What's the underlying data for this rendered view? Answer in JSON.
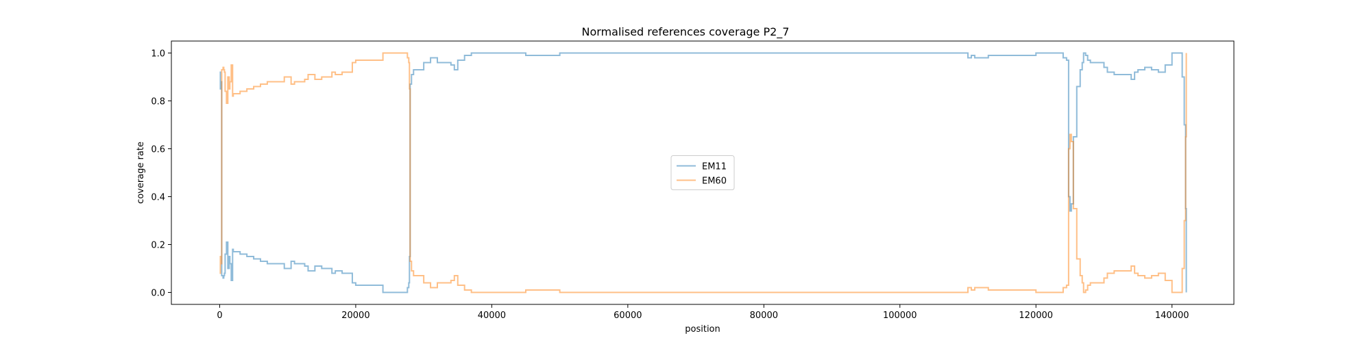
{
  "chart_data": {
    "type": "line",
    "title": "Normalised references coverage P2_7",
    "xlabel": "position",
    "ylabel": "coverage rate",
    "xlim": [
      -7100,
      149100
    ],
    "ylim": [
      -0.05,
      1.05
    ],
    "xticks": [
      0,
      20000,
      40000,
      60000,
      80000,
      100000,
      120000,
      140000
    ],
    "xtick_labels": [
      "0",
      "20000",
      "40000",
      "60000",
      "80000",
      "100000",
      "120000",
      "140000"
    ],
    "yticks": [
      0.0,
      0.2,
      0.4,
      0.6,
      0.8,
      1.0
    ],
    "ytick_labels": [
      "0.0",
      "0.2",
      "0.4",
      "0.6",
      "0.8",
      "1.0"
    ],
    "grid": false,
    "legend_position": "center",
    "series": [
      {
        "name": "EM11",
        "color": "#1f77b4",
        "alpha": 0.5,
        "x": [
          0,
          100,
          200,
          300,
          400,
          500,
          600,
          700,
          800,
          1000,
          1200,
          1400,
          1500,
          1700,
          1900,
          2000,
          2200,
          2400,
          2600,
          3000,
          4000,
          4500,
          5000,
          6000,
          7000,
          9000,
          9500,
          10500,
          11000,
          12500,
          13000,
          13500,
          14000,
          15000,
          16000,
          16500,
          17000,
          18000,
          19000,
          19500,
          20000,
          23000,
          24000,
          26000,
          27000,
          27600,
          27700,
          27800,
          27900,
          28000,
          28200,
          28500,
          29000,
          30000,
          31000,
          32000,
          33000,
          34000,
          34500,
          35000,
          36000,
          37000,
          40000,
          45000,
          50000,
          70000,
          100000,
          108500,
          110000,
          110500,
          111000,
          113000,
          114000,
          120000,
          123000,
          124000,
          124500,
          124800,
          125000,
          125200,
          125500,
          126000,
          126500,
          126800,
          127000,
          127300,
          127600,
          128000,
          129000,
          130000,
          130500,
          131500,
          133000,
          134000,
          134500,
          135000,
          136000,
          137000,
          138000,
          139000,
          140000,
          141000,
          141500,
          141800,
          142000,
          142100
        ],
        "y": [
          0.92,
          0.85,
          0.88,
          0.07,
          0.07,
          0.06,
          0.07,
          0.08,
          0.16,
          0.21,
          0.1,
          0.15,
          0.12,
          0.05,
          0.18,
          0.17,
          0.17,
          0.17,
          0.17,
          0.16,
          0.15,
          0.15,
          0.14,
          0.13,
          0.12,
          0.12,
          0.1,
          0.13,
          0.12,
          0.11,
          0.09,
          0.09,
          0.11,
          0.1,
          0.1,
          0.08,
          0.09,
          0.08,
          0.08,
          0.04,
          0.03,
          0.03,
          0.0,
          0.0,
          0.0,
          0.02,
          0.02,
          0.04,
          0.15,
          0.87,
          0.91,
          0.93,
          0.93,
          0.96,
          0.98,
          0.96,
          0.96,
          0.95,
          0.93,
          0.97,
          0.99,
          1.0,
          1.0,
          0.99,
          1.0,
          1.0,
          1.0,
          1.0,
          0.98,
          0.99,
          0.98,
          0.99,
          0.99,
          1.0,
          1.0,
          0.98,
          0.97,
          0.4,
          0.34,
          0.37,
          0.65,
          0.86,
          0.93,
          0.96,
          1.0,
          0.99,
          0.97,
          0.96,
          0.96,
          0.94,
          0.92,
          0.91,
          0.91,
          0.89,
          0.92,
          0.93,
          0.94,
          0.93,
          0.92,
          0.95,
          1.0,
          1.0,
          0.9,
          0.7,
          0.35,
          0.0
        ]
      },
      {
        "name": "EM60",
        "color": "#ff7f0e",
        "alpha": 0.5,
        "x": [
          0,
          100,
          200,
          300,
          400,
          500,
          600,
          700,
          800,
          1000,
          1200,
          1400,
          1500,
          1700,
          1900,
          2000,
          2200,
          2400,
          2600,
          3000,
          4000,
          4500,
          5000,
          6000,
          7000,
          9000,
          9500,
          10500,
          11000,
          12500,
          13000,
          13500,
          14000,
          15000,
          16000,
          16500,
          17000,
          18000,
          19000,
          19500,
          20000,
          23000,
          24000,
          26000,
          27000,
          27600,
          27700,
          27800,
          27900,
          28000,
          28200,
          28500,
          29000,
          30000,
          31000,
          32000,
          33000,
          34000,
          34500,
          35000,
          36000,
          37000,
          40000,
          45000,
          50000,
          70000,
          100000,
          108500,
          110000,
          110500,
          111000,
          113000,
          114000,
          120000,
          123000,
          124000,
          124500,
          124800,
          125000,
          125200,
          125500,
          126000,
          126500,
          126800,
          127000,
          127300,
          127600,
          128000,
          129000,
          130000,
          130500,
          131500,
          133000,
          134000,
          134500,
          135000,
          136000,
          137000,
          138000,
          139000,
          140000,
          141000,
          141500,
          141800,
          142000,
          142100
        ],
        "y": [
          0.08,
          0.15,
          0.12,
          0.93,
          0.93,
          0.94,
          0.93,
          0.92,
          0.84,
          0.79,
          0.9,
          0.85,
          0.88,
          0.95,
          0.82,
          0.83,
          0.83,
          0.83,
          0.83,
          0.84,
          0.85,
          0.85,
          0.86,
          0.87,
          0.88,
          0.88,
          0.9,
          0.87,
          0.88,
          0.89,
          0.91,
          0.91,
          0.89,
          0.9,
          0.9,
          0.92,
          0.91,
          0.92,
          0.92,
          0.96,
          0.97,
          0.97,
          1.0,
          1.0,
          1.0,
          0.98,
          0.98,
          0.96,
          0.85,
          0.13,
          0.09,
          0.07,
          0.07,
          0.04,
          0.02,
          0.04,
          0.04,
          0.05,
          0.07,
          0.03,
          0.01,
          0.0,
          0.0,
          0.01,
          0.0,
          0.0,
          0.0,
          0.0,
          0.02,
          0.01,
          0.02,
          0.01,
          0.01,
          0.0,
          0.0,
          0.02,
          0.03,
          0.6,
          0.66,
          0.63,
          0.35,
          0.14,
          0.07,
          0.04,
          0.0,
          0.01,
          0.03,
          0.04,
          0.04,
          0.06,
          0.08,
          0.09,
          0.09,
          0.11,
          0.08,
          0.07,
          0.06,
          0.07,
          0.08,
          0.05,
          0.0,
          0.0,
          0.1,
          0.3,
          0.65,
          1.0
        ]
      }
    ]
  }
}
